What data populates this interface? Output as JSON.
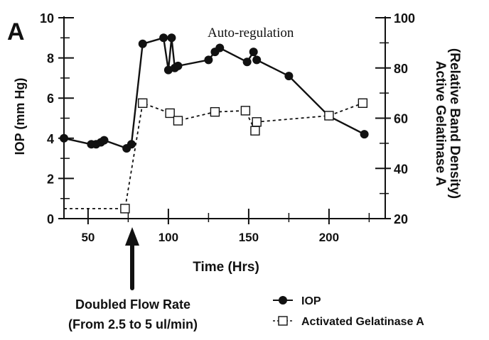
{
  "chart_data": {
    "type": "line",
    "panel_label": "A",
    "annotation": "Auto-regulation",
    "xlabel": "Time (Hrs)",
    "ylabel": "IOP (mm Hg)",
    "y2label_line1": "Active Gelatinase A",
    "y2label_line2": "(Relative Band Density)",
    "xlim": [
      35,
      235
    ],
    "ylim": [
      0,
      10
    ],
    "y2lim": [
      20,
      100
    ],
    "x_ticks": [
      50,
      100,
      150,
      200
    ],
    "x_tick_labels": [
      "50",
      "100",
      "150",
      "200"
    ],
    "y_ticks": [
      0,
      2,
      4,
      6,
      8,
      10
    ],
    "y_tick_labels": [
      "0",
      "2",
      "4",
      "6",
      "8",
      "10"
    ],
    "y2_ticks": [
      20,
      40,
      60,
      80,
      100
    ],
    "y2_tick_labels": [
      "20",
      "40",
      "60",
      "80",
      "100"
    ],
    "callout_line1": "Doubled Flow Rate",
    "callout_line2": "(From 2.5 to 5 ul/min)",
    "callout_x": 75,
    "legend_position": "bottom-right",
    "series": [
      {
        "name": "IOP",
        "axis": "left",
        "marker": "filled-circle",
        "style": "solid",
        "color": "#111111",
        "x": [
          35,
          52,
          55,
          58,
          60,
          74,
          77,
          84,
          97,
          100,
          102,
          104,
          106,
          125,
          129,
          132,
          149,
          153,
          155,
          175,
          200,
          222
        ],
        "y": [
          4.0,
          3.7,
          3.7,
          3.8,
          3.9,
          3.5,
          3.7,
          8.7,
          9.0,
          7.4,
          9.0,
          7.5,
          7.6,
          7.9,
          8.3,
          8.5,
          7.8,
          8.3,
          7.9,
          7.1,
          5.1,
          4.2
        ]
      },
      {
        "name": "Activated Gelatinase A",
        "axis": "right",
        "marker": "open-square",
        "style": "dashed",
        "color": "#111111",
        "x": [
          35,
          73,
          84,
          101,
          106,
          129,
          148,
          154,
          155,
          200,
          221
        ],
        "y": [
          24.0,
          24.0,
          66.0,
          62.0,
          59.0,
          62.5,
          63.0,
          55.0,
          58.5,
          61.0,
          66.0
        ]
      }
    ]
  }
}
